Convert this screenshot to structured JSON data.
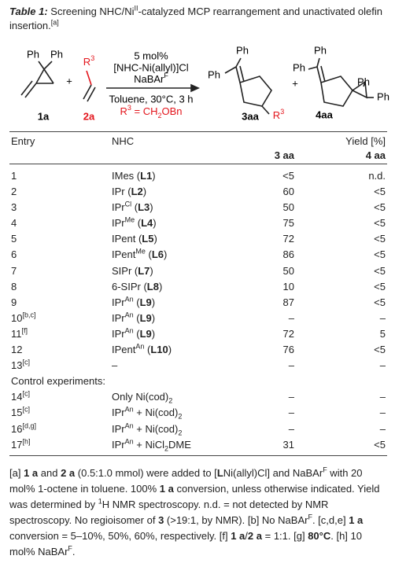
{
  "caption": [
    {
      "bi": "Table 1:"
    },
    {
      "t": " Screening NHC/Ni"
    },
    {
      "sup": "II"
    },
    {
      "t": "-catalyzed MCP rearrangement and unactivated olefin insertion."
    },
    {
      "sup": "[a]"
    }
  ],
  "scheme": {
    "reactant1": {
      "ph": [
        "Ph",
        "Ph"
      ],
      "label": "1a"
    },
    "plus": "+",
    "reactant2": {
      "r": [
        {
          "t": "R"
        },
        {
          "sup": "3"
        }
      ],
      "label": "2a"
    },
    "conditions": {
      "above": [
        "5 mol%",
        "[NHC-Ni(allyl)]Cl",
        [
          {
            "t": "NaBAr"
          },
          {
            "sup": "F"
          }
        ]
      ],
      "below": [
        "Toluene, 30°C, 3 h",
        [
          {
            "t": "R"
          },
          {
            "sup": "3"
          },
          {
            "t": " = CH"
          },
          {
            "sub": "2"
          },
          {
            "t": "OBn"
          }
        ]
      ]
    },
    "product3": {
      "ph": [
        "Ph",
        "Ph"
      ],
      "r": [
        {
          "t": "R"
        },
        {
          "sup": "3"
        }
      ],
      "label": "3aa"
    },
    "plus2": "+",
    "product4": {
      "ph": [
        "Ph",
        "Ph",
        "Ph",
        "Ph"
      ],
      "label": "4aa"
    }
  },
  "table": {
    "headers": {
      "entry": "Entry",
      "nhc": "NHC",
      "yield": "Yield [%]",
      "c3": "3 aa",
      "c4": "4 aa"
    },
    "rows": [
      {
        "entry": "1",
        "nhc": [
          {
            "t": "IMes ("
          },
          {
            "b": "L1"
          },
          {
            "t": ")"
          }
        ],
        "y3": "<5",
        "y4": "n.d."
      },
      {
        "entry": "2",
        "nhc": [
          {
            "t": "IPr ("
          },
          {
            "b": "L2"
          },
          {
            "t": ")"
          }
        ],
        "y3": 60,
        "y4": "<5"
      },
      {
        "entry": "3",
        "nhc": [
          {
            "t": "IPr"
          },
          {
            "sup": "Cl"
          },
          {
            "t": " ("
          },
          {
            "b": "L3"
          },
          {
            "t": ")"
          }
        ],
        "y3": 50,
        "y4": "<5"
      },
      {
        "entry": "4",
        "nhc": [
          {
            "t": "IPr"
          },
          {
            "sup": "Me"
          },
          {
            "t": " ("
          },
          {
            "b": "L4"
          },
          {
            "t": ")"
          }
        ],
        "y3": 75,
        "y4": "<5"
      },
      {
        "entry": "5",
        "nhc": [
          {
            "t": "IPent ("
          },
          {
            "b": "L5"
          },
          {
            "t": ")"
          }
        ],
        "y3": 72,
        "y4": "<5"
      },
      {
        "entry": "6",
        "nhc": [
          {
            "t": "IPent"
          },
          {
            "sup": "Me"
          },
          {
            "t": " ("
          },
          {
            "b": "L6"
          },
          {
            "t": ")"
          }
        ],
        "y3": 86,
        "y4": "<5"
      },
      {
        "entry": "7",
        "nhc": [
          {
            "t": "SIPr ("
          },
          {
            "b": "L7"
          },
          {
            "t": ")"
          }
        ],
        "y3": 50,
        "y4": "<5"
      },
      {
        "entry": "8",
        "nhc": [
          {
            "t": "6-SIPr ("
          },
          {
            "b": "L8"
          },
          {
            "t": ")"
          }
        ],
        "y3": 10,
        "y4": "<5"
      },
      {
        "entry": "9",
        "nhc": [
          {
            "t": "IPr"
          },
          {
            "sup": "An"
          },
          {
            "t": " ("
          },
          {
            "b": "L9"
          },
          {
            "t": ")"
          }
        ],
        "y3": 87,
        "y4": "<5"
      },
      {
        "entry": [
          {
            "t": "10"
          },
          {
            "sup": "[b,c]"
          }
        ],
        "nhc": [
          {
            "t": "IPr"
          },
          {
            "sup": "An"
          },
          {
            "t": " ("
          },
          {
            "b": "L9"
          },
          {
            "t": ")"
          }
        ],
        "y3": "–",
        "y4": "–"
      },
      {
        "entry": [
          {
            "t": "11"
          },
          {
            "sup": "[f]"
          }
        ],
        "nhc": [
          {
            "t": "IPr"
          },
          {
            "sup": "An"
          },
          {
            "t": " ("
          },
          {
            "b": "L9"
          },
          {
            "t": ")"
          }
        ],
        "y3": 72,
        "y4": 5
      },
      {
        "entry": "12",
        "nhc": [
          {
            "t": "IPent"
          },
          {
            "sup": "An"
          },
          {
            "t": " ("
          },
          {
            "b": "L10"
          },
          {
            "t": ")"
          }
        ],
        "y3": 76,
        "y4": "<5"
      },
      {
        "entry": [
          {
            "t": "13"
          },
          {
            "sup": "[c]"
          }
        ],
        "nhc": "–",
        "y3": "–",
        "y4": "–"
      },
      {
        "section": "Control experiments:"
      },
      {
        "entry": [
          {
            "t": "14"
          },
          {
            "sup": "[c]"
          }
        ],
        "nhc": [
          {
            "t": "Only Ni(cod)"
          },
          {
            "sub": "2"
          }
        ],
        "y3": "–",
        "y4": "–"
      },
      {
        "entry": [
          {
            "t": "15"
          },
          {
            "sup": "[c]"
          }
        ],
        "nhc": [
          {
            "t": "IPr"
          },
          {
            "sup": "An"
          },
          {
            "t": " + Ni(cod)"
          },
          {
            "sub": "2"
          }
        ],
        "y3": "–",
        "y4": "–"
      },
      {
        "entry": [
          {
            "t": "16"
          },
          {
            "sup": "[d,g]"
          }
        ],
        "nhc": [
          {
            "t": "IPr"
          },
          {
            "sup": "An"
          },
          {
            "t": " + Ni(cod)"
          },
          {
            "sub": "2"
          }
        ],
        "y3": "–",
        "y4": "–"
      },
      {
        "entry": [
          {
            "t": "17"
          },
          {
            "sup": "[h]"
          }
        ],
        "nhc": [
          {
            "t": "IPr"
          },
          {
            "sup": "An"
          },
          {
            "t": " + NiCl"
          },
          {
            "sub": "2"
          },
          {
            "t": "DME"
          }
        ],
        "y3": 31,
        "y4": "<5"
      }
    ]
  },
  "footnote": [
    {
      "t": "[a] "
    },
    {
      "b": "1 a"
    },
    {
      "t": " and "
    },
    {
      "b": "2 a"
    },
    {
      "t": " (0.5:1.0 mmol) were added to ["
    },
    {
      "b": "L"
    },
    {
      "t": "Ni(allyl)Cl] and NaBAr"
    },
    {
      "sup": "F"
    },
    {
      "t": " with 20 mol% 1-octene in toluene. 100% "
    },
    {
      "b": "1 a"
    },
    {
      "t": " conversion, unless otherwise indicated. Yield was determined by "
    },
    {
      "sup": "1"
    },
    {
      "t": "H NMR spectroscopy. n.d. = not detected by NMR spectroscopy. No regioisomer of "
    },
    {
      "b": "3"
    },
    {
      "t": " (>19:1, by NMR). [b] No NaBAr"
    },
    {
      "sup": "F"
    },
    {
      "t": ". [c,d,e] "
    },
    {
      "b": "1 a"
    },
    {
      "t": " conversion = 5–10%, 50%, 60%, respectively. [f] "
    },
    {
      "b": "1 a"
    },
    {
      "t": "/"
    },
    {
      "b": "2 a"
    },
    {
      "t": " = 1:1. [g] "
    },
    {
      "b": "80°C"
    },
    {
      "t": ". [h] 10 mol% NaBAr"
    },
    {
      "sup": "F"
    },
    {
      "t": "."
    }
  ]
}
